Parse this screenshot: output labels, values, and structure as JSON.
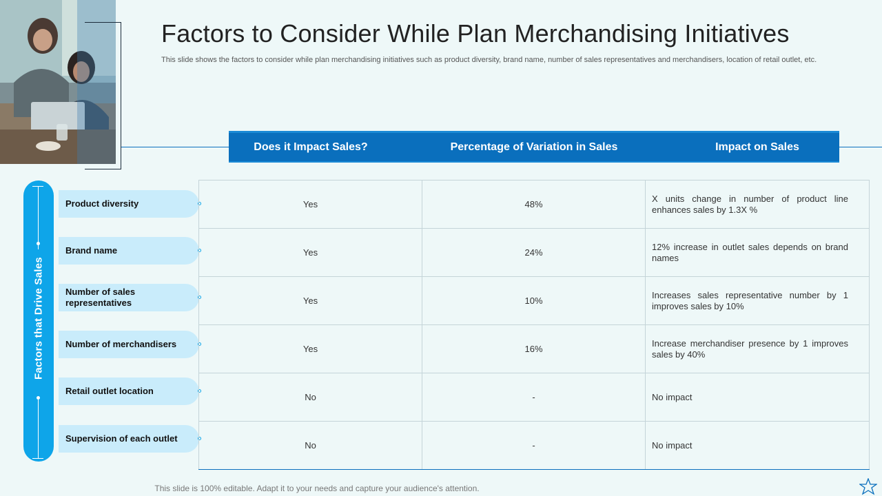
{
  "title": "Factors to Consider While Plan Merchandising Initiatives",
  "subtitle": "This slide shows the factors to consider while plan merchandising initiatives such as product diversity, brand name, number of sales representatives and merchandisers, location of retail outlet, etc.",
  "header": {
    "col1": "Does it Impact Sales?",
    "col2": "Percentage of Variation in Sales",
    "col3": "Impact on Sales"
  },
  "side_label": "Factors that Drive Sales",
  "rows": [
    {
      "factor": "Product diversity",
      "impact": "Yes",
      "variation": "48%",
      "description": "X units change in number of product line enhances sales by 1.3X %"
    },
    {
      "factor": "Brand name",
      "impact": "Yes",
      "variation": "24%",
      "description": "12% increase in outlet sales depends on brand names"
    },
    {
      "factor": "Number of sales representatives",
      "impact": "Yes",
      "variation": "10%",
      "description": "Increases sales representative number by 1 improves sales by 10%"
    },
    {
      "factor": "Number of merchandisers",
      "impact": "Yes",
      "variation": "16%",
      "description": "Increase merchandiser presence by 1 improves sales by 40%"
    },
    {
      "factor": "Retail outlet location",
      "impact": "No",
      "variation": "-",
      "description": "No impact"
    },
    {
      "factor": "Supervision of each outlet",
      "impact": "No",
      "variation": "-",
      "description": "No impact"
    }
  ],
  "footer": "This slide is 100% editable. Adapt it to your needs and capture your audience's attention.",
  "colors": {
    "accent": "#0a6fbd",
    "side_bar": "#0ea5e9",
    "factor_bg": "#c9ecfb",
    "background": "#eef8f8"
  },
  "icons": {
    "corner": "star-icon"
  }
}
